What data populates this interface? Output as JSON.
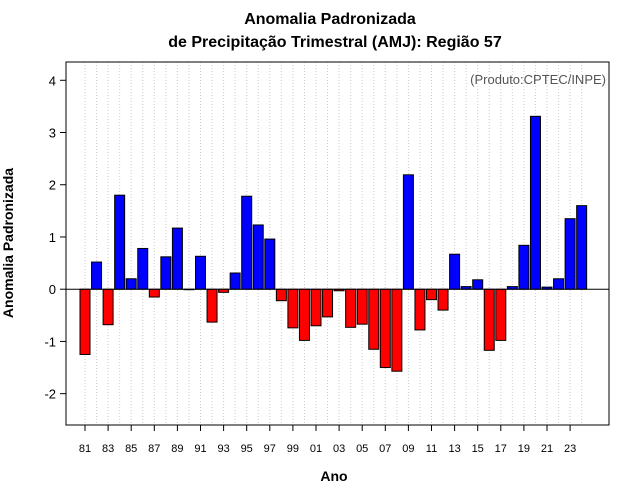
{
  "chart_data": {
    "type": "bar",
    "title_line1": "Anomalia Padronizada",
    "title_line2": "de Precipitação Trimestral (AMJ): Região 57",
    "xlabel": "Ano",
    "ylabel": "Anomalia Padronizada",
    "credit": "(Produto:CPTEC/INPE)",
    "ylim": [
      -2.6,
      4.35
    ],
    "yticks": [
      -2,
      -1,
      0,
      1,
      2,
      3,
      4
    ],
    "years": [
      1981,
      1982,
      1983,
      1984,
      1985,
      1986,
      1987,
      1988,
      1989,
      1990,
      1991,
      1992,
      1993,
      1994,
      1995,
      1996,
      1997,
      1998,
      1999,
      2000,
      2001,
      2002,
      2003,
      2004,
      2005,
      2006,
      2007,
      2008,
      2009,
      2010,
      2011,
      2012,
      2013,
      2014,
      2015,
      2016,
      2017,
      2018,
      2019,
      2020,
      2021,
      2022,
      2023,
      2024
    ],
    "xtick_labels": [
      "81",
      "83",
      "85",
      "87",
      "89",
      "91",
      "93",
      "95",
      "97",
      "99",
      "01",
      "03",
      "05",
      "07",
      "09",
      "11",
      "13",
      "15",
      "17",
      "19",
      "21",
      "23"
    ],
    "values": [
      -1.25,
      0.52,
      -0.68,
      1.8,
      0.2,
      0.78,
      -0.15,
      0.62,
      1.17,
      0.0,
      0.63,
      -0.63,
      -0.06,
      0.31,
      1.78,
      1.23,
      0.96,
      -0.22,
      -0.74,
      -0.98,
      -0.7,
      -0.53,
      -0.03,
      -0.73,
      -0.67,
      -1.15,
      -1.5,
      -1.57,
      2.19,
      -0.78,
      -0.2,
      -0.4,
      0.67,
      0.05,
      0.18,
      -1.17,
      -0.98,
      0.05,
      0.84,
      3.31,
      0.04,
      0.2,
      1.35,
      1.6
    ],
    "colors": {
      "positive": "#0000ff",
      "negative": "#ff0000",
      "bar_stroke": "#000000",
      "grid": "#cccccc"
    },
    "grid": true
  }
}
